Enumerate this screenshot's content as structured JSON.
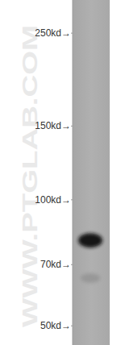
{
  "chart_data": {
    "type": "western_blot",
    "annotation": "WWW.PTGLAB.COM",
    "log": "y",
    "grid": false,
    "ylim": [
      45,
      300
    ],
    "yticks": [
      {
        "value": 250,
        "label": "250kd→"
      },
      {
        "value": 150,
        "label": "150kd→"
      },
      {
        "value": 100,
        "label": "100kd→"
      },
      {
        "value": 70,
        "label": "70kd→"
      },
      {
        "value": 50,
        "label": "50kd→"
      }
    ],
    "values": [
      80,
      65
    ],
    "colors": [
      "#141414",
      "#8e8e8e"
    ]
  }
}
